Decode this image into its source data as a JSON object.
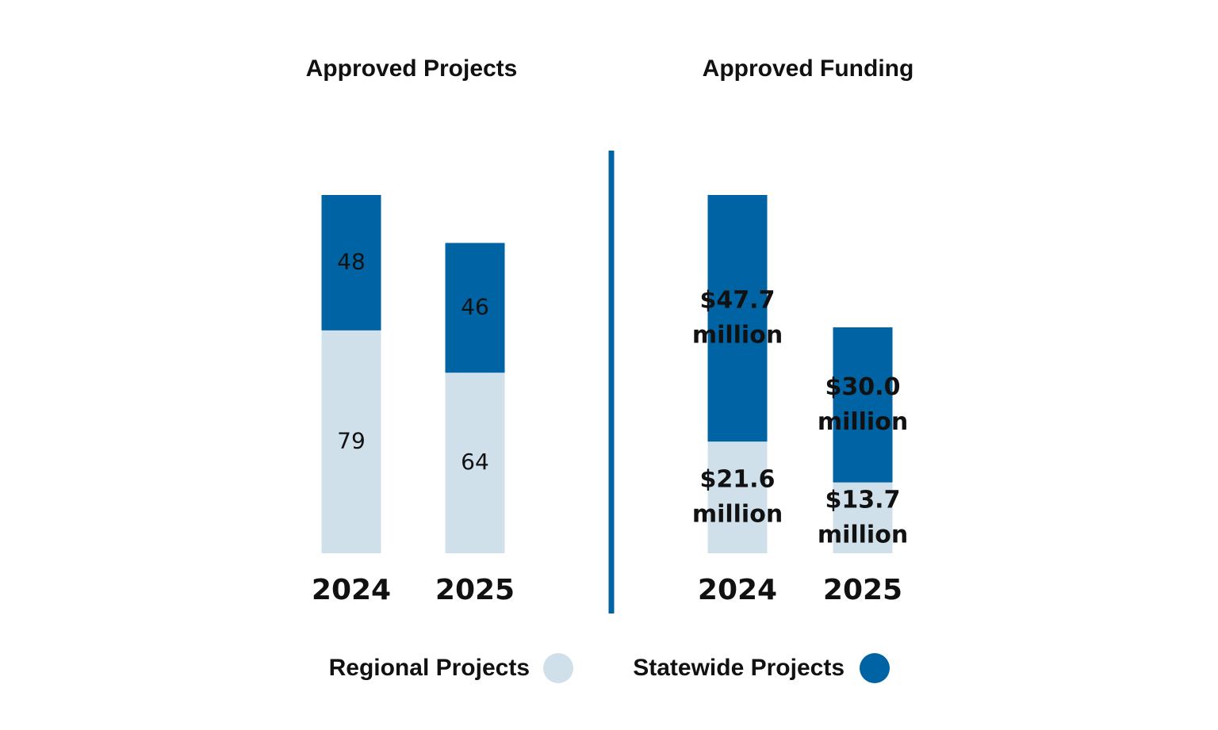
{
  "chart_data": [
    {
      "type": "bar",
      "stacked": true,
      "title": "Approved Projects",
      "categories": [
        "2024",
        "2025"
      ],
      "series": [
        {
          "name": "Regional Projects",
          "color": "#cfe0eb",
          "values": [
            79,
            64
          ]
        },
        {
          "name": "Statewide Projects",
          "color": "#0063a3",
          "values": [
            48,
            46
          ]
        }
      ]
    },
    {
      "type": "bar",
      "stacked": true,
      "title": "Approved Funding",
      "categories": [
        "2024",
        "2025"
      ],
      "series": [
        {
          "color": "#cfe0eb",
          "values": [
            21.6,
            13.7
          ],
          "value_labels": [
            "$21.6 million",
            "$13.7 million"
          ]
        },
        {
          "color": "#0063a3",
          "values": [
            47.7,
            30.0
          ],
          "value_labels": [
            "$47.7 million",
            "$30.0 million"
          ]
        }
      ]
    }
  ]
}
